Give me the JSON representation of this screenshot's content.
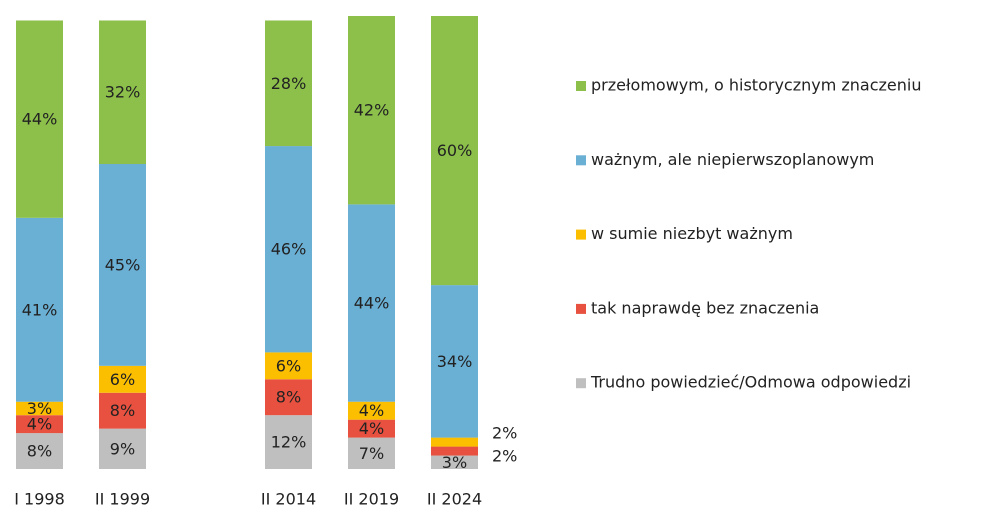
{
  "chart_data": {
    "type": "stacked_bar",
    "categories": [
      "I 1998",
      "II 1999",
      null,
      "II 2014",
      "II 2019",
      "II 2024"
    ],
    "ylim": [
      0,
      101
    ],
    "legend": "right",
    "series": [
      {
        "name": "Trudno powiedzieć/Odmowa odpowiedzi",
        "color": "#bfbfbf",
        "values": [
          8,
          9,
          null,
          12,
          7,
          3
        ],
        "value_labels": [
          "8%",
          "9%",
          null,
          "12%",
          "7%",
          "3%"
        ]
      },
      {
        "name": "tak naprawdę bez znaczenia",
        "color": "#e8513f",
        "values": [
          4,
          8,
          null,
          8,
          4,
          2
        ],
        "value_labels": [
          "4%",
          "8%",
          null,
          "8%",
          "4%",
          "2%"
        ]
      },
      {
        "name": "w sumie niezbyt ważnym",
        "color": "#fbbf00",
        "values": [
          3,
          6,
          null,
          6,
          4,
          2
        ],
        "value_labels": [
          "3%",
          "6%",
          null,
          "6%",
          "4%",
          "2%"
        ]
      },
      {
        "name": "ważnym, ale niepierwszoplanowym",
        "color": "#6aafd4",
        "values": [
          41,
          45,
          null,
          46,
          44,
          34
        ],
        "value_labels": [
          "41%",
          "45%",
          null,
          "46%",
          "44%",
          "34%"
        ]
      },
      {
        "name": "przełomowym, o historycznym znaczeniu",
        "color": "#8cc04b",
        "values": [
          44,
          32,
          null,
          28,
          42,
          60
        ],
        "value_labels": [
          "44%",
          "32%",
          null,
          "28%",
          "42%",
          "60%"
        ]
      }
    ]
  }
}
